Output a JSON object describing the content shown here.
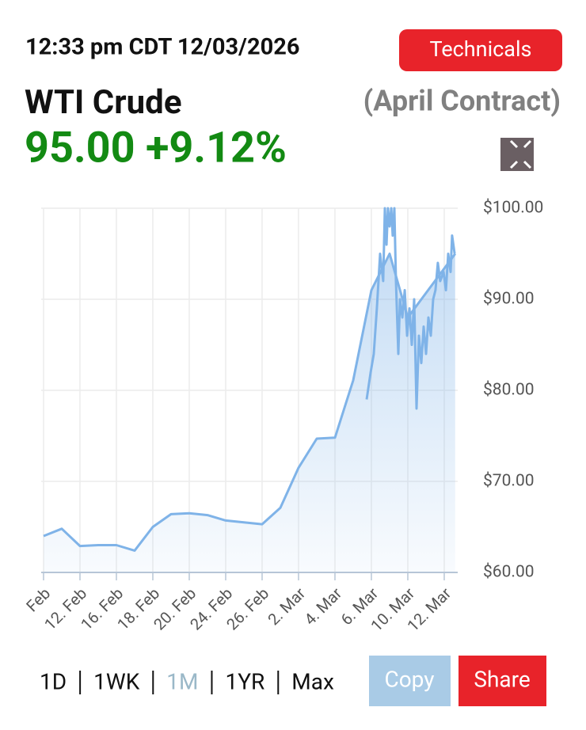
{
  "header": {
    "timestamp": "12:33 pm CDT 12/03/2026",
    "technicals_button": "Technicals",
    "name": "WTI Crude",
    "contract": "(April Contract)",
    "quote": "95.00 +9.12%"
  },
  "chart_data": {
    "type": "line",
    "series": [
      {
        "color": "#7fb3e8",
        "area": true,
        "x": [
          0,
          1,
          2,
          3,
          4,
          5,
          6,
          7,
          8,
          9,
          10,
          11,
          12,
          13,
          14,
          15,
          16,
          17,
          18,
          19,
          20,
          22.6
        ],
        "values": [
          64.0,
          64.8,
          62.9,
          63.0,
          63.0,
          62.4,
          65.0,
          66.4,
          66.5,
          66.3,
          65.7,
          65.5,
          65.3,
          67.1,
          71.5,
          74.7,
          74.8,
          81.1,
          91.0,
          95.0,
          88.0,
          95.0
        ]
      },
      {
        "color": "#7fb3e8",
        "area": false,
        "x": [
          17.74,
          17.96,
          18.13,
          18.3,
          18.48,
          18.65,
          18.74,
          18.83,
          18.91,
          19.0,
          19.09,
          19.17,
          19.26,
          19.35,
          19.48,
          19.57,
          19.7,
          19.83,
          19.96,
          20.09,
          20.22,
          20.35,
          20.48,
          20.61,
          20.74,
          20.87,
          21.0,
          21.13,
          21.26,
          21.39,
          21.52,
          21.65,
          21.78,
          21.96,
          22.09,
          22.22,
          22.35,
          22.43,
          22.57
        ],
        "values": [
          79,
          82,
          84,
          89,
          95,
          92,
          100,
          96,
          100,
          98,
          100,
          97,
          100,
          92,
          84,
          90,
          88,
          91,
          86,
          89,
          85,
          90,
          78,
          86,
          83,
          87,
          84,
          88,
          86,
          90,
          91,
          94,
          92,
          93,
          91,
          95,
          93,
          97,
          95
        ]
      }
    ],
    "xlim": [
      -0.13,
      22.74
    ],
    "xticks": [
      {
        "value": 0,
        "label": "Feb"
      },
      {
        "value": 2,
        "label": "12. Feb"
      },
      {
        "value": 4,
        "label": "16. Feb"
      },
      {
        "value": 6,
        "label": "18. Feb"
      },
      {
        "value": 8,
        "label": "20. Feb"
      },
      {
        "value": 10,
        "label": "24. Feb"
      },
      {
        "value": 12,
        "label": "26. Feb"
      },
      {
        "value": 14,
        "label": "2. Mar"
      },
      {
        "value": 16,
        "label": "4. Mar"
      },
      {
        "value": 18,
        "label": "6. Mar"
      },
      {
        "value": 20,
        "label": "10. Mar"
      },
      {
        "value": 22,
        "label": "12. Mar"
      }
    ],
    "ylim": [
      60,
      100
    ],
    "yticks": [
      {
        "value": 60,
        "label": "$60.00"
      },
      {
        "value": 70,
        "label": "$70.00"
      },
      {
        "value": 80,
        "label": "$80.00"
      },
      {
        "value": 90,
        "label": "$90.00"
      },
      {
        "value": 100,
        "label": "$100.00"
      }
    ],
    "grid": true
  },
  "footer": {
    "ranges": [
      "1D",
      "1WK",
      "1M",
      "1YR",
      "Max"
    ],
    "selected_range_index": 2,
    "copy_button": "Copy",
    "share_button": "Share"
  }
}
